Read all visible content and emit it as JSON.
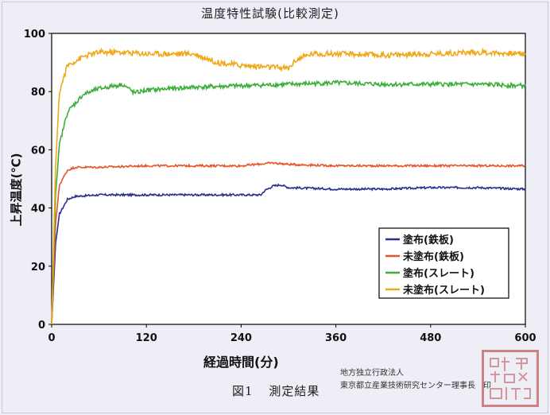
{
  "chart_data": {
    "type": "line",
    "title": "温度特性試験(比較測定)",
    "xlabel": "経過時間(分)",
    "ylabel": "上昇温度(℃)",
    "xlim": [
      0,
      600
    ],
    "ylim": [
      0,
      100
    ],
    "xticks": [
      "0",
      "120",
      "240",
      "360",
      "480",
      "600"
    ],
    "yticks": [
      "0",
      "20",
      "40",
      "60",
      "80",
      "100"
    ],
    "legend_position": "lower-right",
    "grid": false,
    "series": [
      {
        "name": "塗布(鉄板)",
        "color": "#2b2f8f",
        "x": [
          0,
          5,
          10,
          20,
          30,
          60,
          120,
          180,
          240,
          265,
          270,
          280,
          290,
          300,
          360,
          420,
          480,
          540,
          600
        ],
        "y": [
          0,
          28,
          38,
          43,
          44,
          44.5,
          44.5,
          44.5,
          44.5,
          44.5,
          46,
          47.5,
          48,
          47,
          46.5,
          46.5,
          47,
          47,
          46.5
        ]
      },
      {
        "name": "未塗布(鉄板)",
        "color": "#e8542a",
        "x": [
          0,
          5,
          10,
          20,
          30,
          60,
          120,
          180,
          240,
          280,
          300,
          360,
          420,
          480,
          540,
          600
        ],
        "y": [
          0,
          35,
          48,
          53,
          54,
          54,
          54.5,
          54.5,
          54.5,
          55.5,
          55,
          54.5,
          54.5,
          54.5,
          54.5,
          54.5
        ]
      },
      {
        "name": "塗布(スレート)",
        "color": "#3cae3a",
        "x": [
          0,
          5,
          10,
          20,
          40,
          60,
          90,
          105,
          120,
          180,
          240,
          300,
          360,
          420,
          480,
          540,
          600
        ],
        "y": [
          0,
          45,
          62,
          73,
          79,
          81,
          82.5,
          79.5,
          80.5,
          81.5,
          82,
          82.5,
          83,
          82.5,
          82.5,
          82.5,
          82
        ]
      },
      {
        "name": "未塗布(スレート)",
        "color": "#f0a81a",
        "x": [
          0,
          5,
          10,
          20,
          40,
          60,
          90,
          120,
          180,
          210,
          240,
          300,
          310,
          330,
          360,
          420,
          480,
          540,
          600
        ],
        "y": [
          0,
          55,
          80,
          89,
          92,
          93.5,
          93.5,
          93,
          93,
          90,
          89,
          88,
          91,
          93,
          93,
          92.5,
          93,
          93.5,
          93
        ]
      }
    ]
  },
  "caption": {
    "figure_label": "図1",
    "figure_title": "測定結果"
  },
  "issuer": {
    "line1": "地方独立行政法人",
    "line2": "東京都立産業技術研究センター理事長",
    "seal_mark": "印"
  },
  "stamp": {
    "color": "#c96f6f"
  }
}
